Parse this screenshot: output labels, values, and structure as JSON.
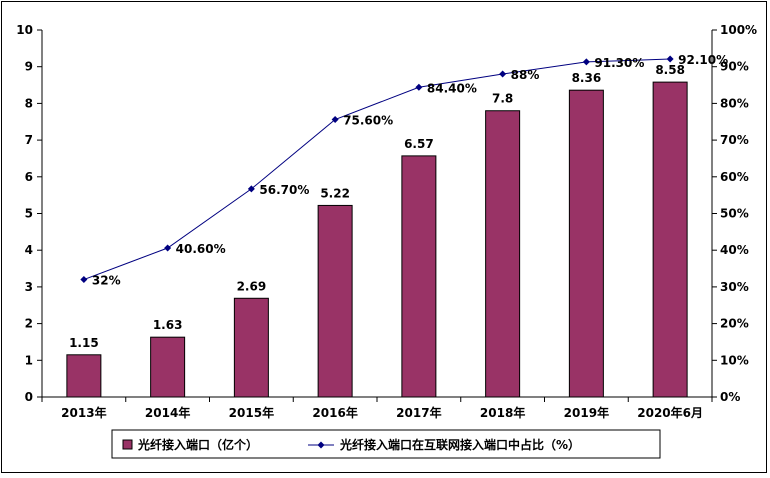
{
  "chart_data": {
    "type": "bar",
    "categories": [
      "2013年",
      "2014年",
      "2015年",
      "2016年",
      "2017年",
      "2018年",
      "2019年",
      "2020年6月"
    ],
    "series": [
      {
        "name": "光纤接入端口（亿个）",
        "type": "bar",
        "axis": "left",
        "values": [
          1.15,
          1.63,
          2.69,
          5.22,
          6.57,
          7.8,
          8.36,
          8.58
        ],
        "labels": [
          "1.15",
          "1.63",
          "2.69",
          "5.22",
          "6.57",
          "7.8",
          "8.36",
          "8.58"
        ],
        "color": "#993366"
      },
      {
        "name": "光纤接入端口在互联网接入端口中占比（%）",
        "type": "line",
        "axis": "right",
        "values": [
          32,
          40.6,
          56.7,
          75.6,
          84.4,
          88,
          91.3,
          92.1
        ],
        "labels": [
          "32%",
          "40.60%",
          "56.70%",
          "75.60%",
          "84.40%",
          "88%",
          "91.30%",
          "92.10%"
        ],
        "color": "#000080"
      }
    ],
    "y_left": {
      "min": 0,
      "max": 10,
      "step": 1,
      "ticks": [
        "0",
        "1",
        "2",
        "3",
        "4",
        "5",
        "6",
        "7",
        "8",
        "9",
        "10"
      ]
    },
    "y_right": {
      "min": 0,
      "max": 100,
      "step": 10,
      "ticks": [
        "0%",
        "10%",
        "20%",
        "30%",
        "40%",
        "50%",
        "60%",
        "70%",
        "80%",
        "90%",
        "100%"
      ]
    },
    "grid": false,
    "legend_position": "bottom"
  }
}
